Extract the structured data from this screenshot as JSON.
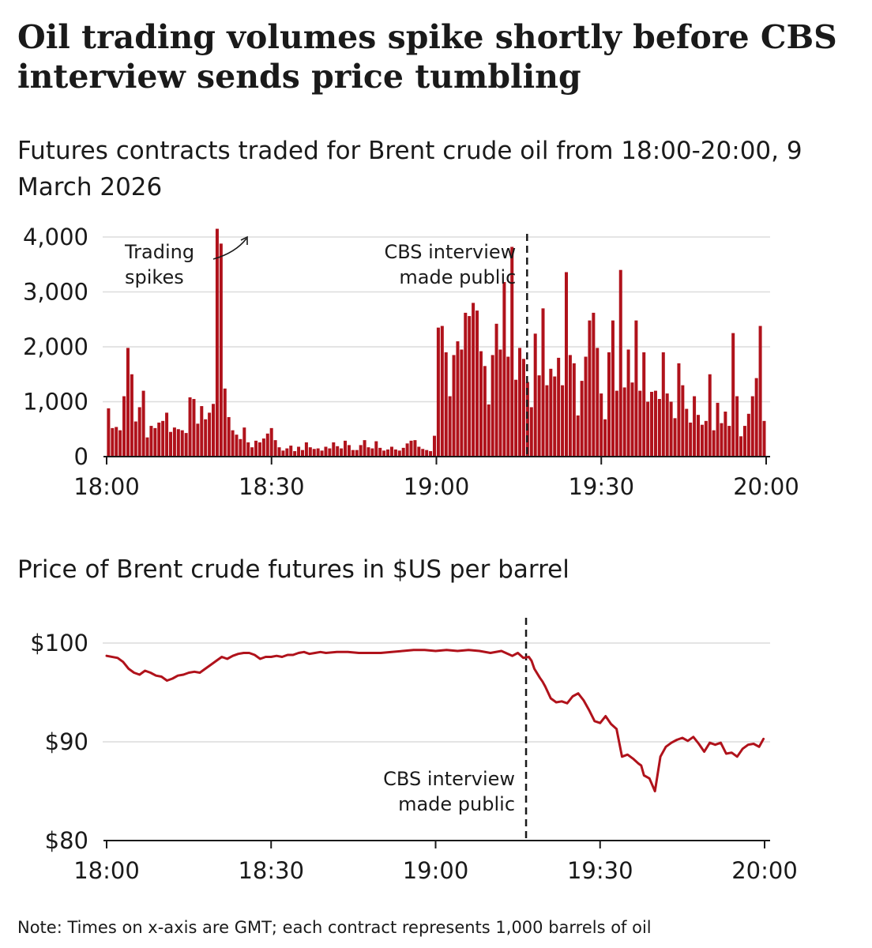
{
  "title": "Oil trading volumes spike shortly before CBS interview sends price tumbling",
  "colors": {
    "series": "#b0121b",
    "grid": "#dcdcdc",
    "axis": "#1a1a1a"
  },
  "note": "Note: Times on x-axis are GMT; each contract represents 1,000 barrels of oil",
  "chart_data": [
    {
      "type": "bar",
      "title": "Futures contracts traded for Brent crude oil from 18:00-20:00, 9 March 2026",
      "xlabel": "",
      "ylabel": "",
      "x_unit": "minutes after 18:00",
      "x_ticks": [
        {
          "value": 0,
          "label": "18:00"
        },
        {
          "value": 30,
          "label": "18:30"
        },
        {
          "value": 60,
          "label": "19:00"
        },
        {
          "value": 90,
          "label": "19:30"
        },
        {
          "value": 120,
          "label": "20:00"
        }
      ],
      "y_ticks": [
        {
          "value": 0,
          "label": "0"
        },
        {
          "value": 1000,
          "label": "1,000"
        },
        {
          "value": 2000,
          "label": "2,000"
        },
        {
          "value": 3000,
          "label": "3,000"
        },
        {
          "value": 4000,
          "label": "4,000"
        }
      ],
      "ylim": [
        0,
        4000
      ],
      "xlim": [
        0,
        120
      ],
      "values": [
        880,
        520,
        540,
        480,
        1100,
        1980,
        1500,
        640,
        900,
        1200,
        350,
        560,
        520,
        620,
        650,
        800,
        450,
        530,
        500,
        480,
        430,
        1080,
        1050,
        600,
        920,
        680,
        800,
        960,
        4150,
        3880,
        1240,
        720,
        480,
        400,
        320,
        530,
        260,
        170,
        290,
        260,
        330,
        420,
        520,
        300,
        170,
        110,
        150,
        200,
        100,
        180,
        120,
        260,
        170,
        140,
        150,
        110,
        180,
        150,
        260,
        190,
        150,
        290,
        210,
        120,
        120,
        210,
        300,
        170,
        150,
        280,
        160,
        110,
        130,
        180,
        130,
        110,
        160,
        240,
        290,
        300,
        180,
        140,
        120,
        100,
        380,
        2350,
        2380,
        1900,
        1100,
        1850,
        2100,
        1950,
        2620,
        2560,
        2800,
        2660,
        1920,
        1650,
        950,
        1850,
        2420,
        1950,
        3180,
        1820,
        3820,
        1400,
        1980,
        1780,
        1360,
        900,
        2240,
        1480,
        2700,
        1300,
        1600,
        1460,
        1800,
        1300,
        3360,
        1850,
        1700,
        750,
        1380,
        1820,
        2480,
        2620,
        1980,
        1150,
        680,
        1900,
        2480,
        1200,
        3400,
        1260,
        1950,
        1350,
        2480,
        1200,
        1900,
        1000,
        1180,
        1200,
        1050,
        1900,
        1150,
        1000,
        700,
        1700,
        1300,
        870,
        620,
        1100,
        760,
        580,
        650,
        1500,
        480,
        980,
        610,
        820,
        560,
        2250,
        1100,
        370,
        560,
        780,
        1100,
        1430,
        2380,
        650
      ],
      "annotations": [
        {
          "label": [
            "Trading",
            "spikes"
          ]
        },
        {
          "label": [
            "CBS interview",
            "made public"
          ],
          "x": 76.5
        }
      ]
    },
    {
      "type": "line",
      "title": "Price of Brent crude futures in $US per barrel",
      "xlabel": "",
      "ylabel": "",
      "x_unit": "minutes after 18:00",
      "x_ticks": [
        {
          "value": 0,
          "label": "18:00"
        },
        {
          "value": 30,
          "label": "18:30"
        },
        {
          "value": 60,
          "label": "19:00"
        },
        {
          "value": 90,
          "label": "19:30"
        },
        {
          "value": 120,
          "label": "20:00"
        }
      ],
      "y_ticks": [
        {
          "value": 80,
          "label": "$80"
        },
        {
          "value": 90,
          "label": "$90"
        },
        {
          "value": 100,
          "label": "$100"
        }
      ],
      "ylim": [
        80,
        100
      ],
      "xlim": [
        0,
        120
      ],
      "x": [
        0,
        2,
        3,
        4,
        5,
        6,
        7,
        8,
        9,
        10,
        11,
        12,
        13,
        14,
        15,
        16,
        17,
        18,
        19,
        20,
        21,
        22,
        23,
        24,
        25,
        26,
        27,
        28,
        29,
        30,
        31,
        32,
        33,
        34,
        35,
        36,
        37,
        38,
        39,
        40,
        42,
        44,
        46,
        48,
        50,
        52,
        54,
        56,
        58,
        60,
        62,
        64,
        66,
        68,
        70,
        72,
        74,
        75,
        76,
        77,
        77.5,
        78,
        79,
        79.5,
        80,
        81,
        82,
        83,
        84,
        85,
        86,
        87,
        88,
        89,
        90,
        91,
        92,
        93,
        94,
        95,
        96,
        97,
        97.5,
        98,
        99,
        100,
        101,
        102,
        103,
        104,
        105,
        106,
        107,
        108,
        109,
        110,
        111,
        112,
        113,
        114,
        115,
        116,
        117,
        118,
        119,
        119.8
      ],
      "values": [
        98.7,
        98.5,
        98.1,
        97.4,
        97.0,
        96.8,
        97.2,
        97.0,
        96.7,
        96.6,
        96.2,
        96.4,
        96.7,
        96.8,
        97.0,
        97.1,
        97.0,
        97.4,
        97.8,
        98.2,
        98.6,
        98.4,
        98.7,
        98.9,
        99.0,
        99.0,
        98.8,
        98.4,
        98.6,
        98.6,
        98.7,
        98.6,
        98.8,
        98.8,
        99.0,
        99.1,
        98.9,
        99.0,
        99.1,
        99.0,
        99.1,
        99.1,
        99.0,
        99.0,
        99.0,
        99.1,
        99.2,
        99.3,
        99.3,
        99.2,
        99.3,
        99.2,
        99.3,
        99.2,
        99.0,
        99.2,
        98.7,
        99.0,
        98.5,
        98.6,
        98.2,
        97.4,
        96.5,
        96.1,
        95.6,
        94.4,
        94.0,
        94.1,
        93.9,
        94.6,
        94.9,
        94.2,
        93.2,
        92.1,
        91.9,
        92.6,
        91.8,
        91.3,
        88.5,
        88.7,
        88.3,
        87.8,
        87.6,
        86.6,
        86.3,
        85.0,
        88.5,
        89.5,
        89.9,
        90.2,
        90.4,
        90.1,
        90.5,
        89.8,
        89.0,
        89.9,
        89.7,
        89.9,
        88.8,
        88.9,
        88.5,
        89.3,
        89.7,
        89.8,
        89.5,
        90.3
      ],
      "annotations": [
        {
          "label": [
            "CBS interview",
            "made public"
          ],
          "x": 76.5
        }
      ]
    }
  ]
}
